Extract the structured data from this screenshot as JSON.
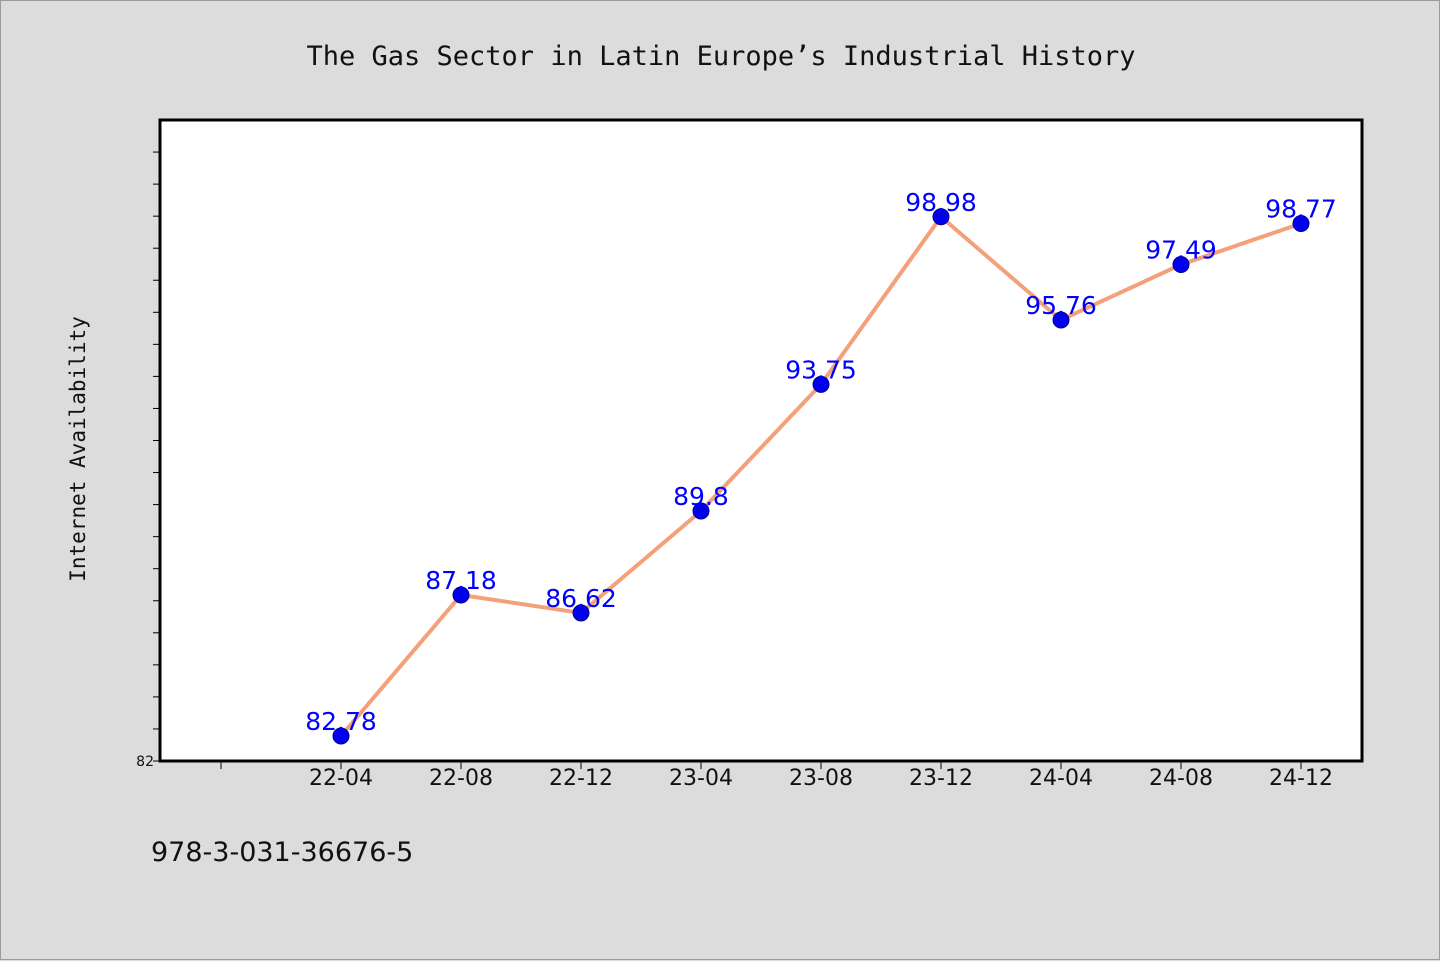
{
  "chart_data": {
    "type": "line",
    "title": "The Gas Sector in Latin Europe’s Industrial History",
    "ylabel": "Internet Availability",
    "xlabel": "",
    "categories": [
      "22-04",
      "22-08",
      "22-12",
      "23-04",
      "23-08",
      "23-12",
      "24-04",
      "24-08",
      "24-12"
    ],
    "values": [
      82.78,
      87.18,
      86.62,
      89.8,
      93.75,
      98.98,
      95.76,
      97.49,
      98.77
    ],
    "data_labels": [
      "82.78",
      "87.18",
      "86.62",
      "89.8",
      "93.75",
      "98.98",
      "95.76",
      "97.49",
      "98.77"
    ],
    "y_tick_label": "82",
    "ylim": [
      82,
      102
    ],
    "grid": false,
    "legend": "none",
    "line_color": "#f4a07a",
    "marker_color": "#0000ee",
    "label_color": "#0000ff"
  },
  "footer": {
    "isbn": "978-3-031-36676-5"
  }
}
